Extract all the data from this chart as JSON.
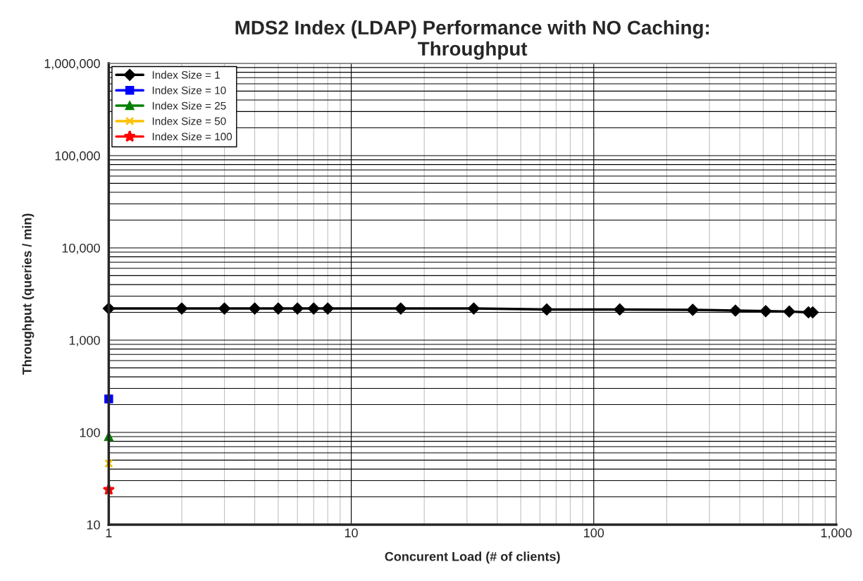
{
  "chart_data": {
    "type": "line",
    "title": "MDS2 Index (LDAP) Performance with NO Caching:\nThroughput",
    "xlabel": "Concurent Load (# of clients)",
    "ylabel": "Throughput (queries / min)",
    "log": "xy",
    "grid": true,
    "legend": "top left",
    "xlim": [
      1,
      1000
    ],
    "xticks": [
      1,
      10,
      100,
      {
        "value": 1000,
        "label": "1,000"
      }
    ],
    "ylim": [
      10,
      1000000
    ],
    "yticks": [
      10,
      100,
      {
        "value": 1000,
        "label": "1,000"
      },
      {
        "value": 10000,
        "label": "10,000"
      },
      {
        "value": 100000,
        "label": "100,000"
      },
      {
        "value": 1000000,
        "label": "1,000,000"
      }
    ],
    "series": [
      {
        "name": "Index Size = 1",
        "color": "#000000",
        "marker": "diamond",
        "x": [
          1,
          2,
          3,
          4,
          5,
          6,
          7,
          8,
          16,
          32,
          64,
          128,
          256,
          384,
          512,
          640,
          768,
          800
        ],
        "values": [
          2200,
          2200,
          2200,
          2200,
          2200,
          2200,
          2200,
          2200,
          2200,
          2200,
          2150,
          2150,
          2130,
          2090,
          2060,
          2040,
          2000,
          2000
        ]
      },
      {
        "name": "Index Size = 10",
        "color": "#0000ff",
        "marker": "square",
        "x": [
          1
        ],
        "values": [
          230
        ]
      },
      {
        "name": "Index Size = 25",
        "color": "#008000",
        "marker": "triangle",
        "x": [
          1
        ],
        "values": [
          90
        ]
      },
      {
        "name": "Index Size = 50",
        "color": "#ffc000",
        "marker": "cross",
        "x": [
          1
        ],
        "values": [
          46
        ]
      },
      {
        "name": "Index Size = 100",
        "color": "#ff0000",
        "marker": "star",
        "x": [
          1
        ],
        "values": [
          24
        ]
      }
    ]
  }
}
